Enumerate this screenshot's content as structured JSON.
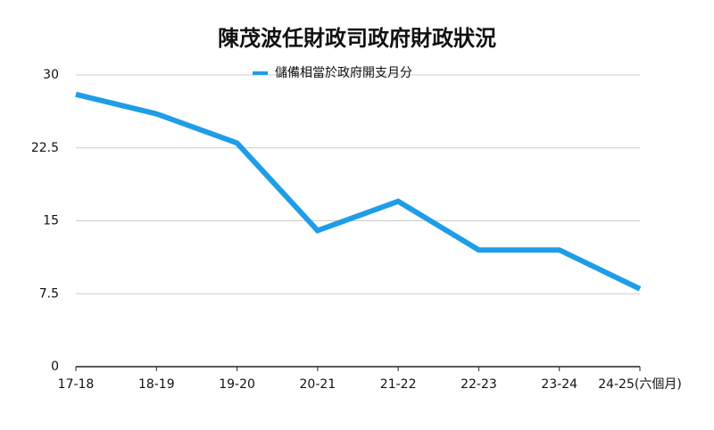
{
  "chart_data": {
    "type": "line",
    "title": "陳茂波任財政司政府財政狀況",
    "categories": [
      "17-18",
      "18-19",
      "19-20",
      "20-21",
      "21-22",
      "22-23",
      "23-24",
      "24-25(六個月)"
    ],
    "series": [
      {
        "name": "儲備相當於政府開支月分",
        "color": "#1f9de6",
        "values": [
          28,
          26,
          23,
          14,
          17,
          12,
          12,
          8
        ]
      }
    ],
    "ylim": [
      0,
      30
    ],
    "yticks": [
      0,
      7.5,
      15,
      22.5,
      30
    ],
    "grid": true
  }
}
